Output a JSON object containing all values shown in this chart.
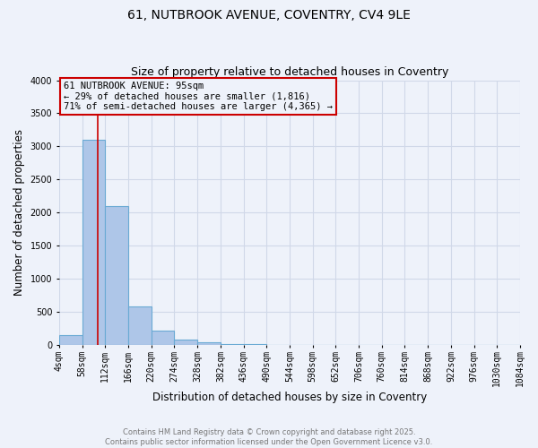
{
  "title": "61, NUTBROOK AVENUE, COVENTRY, CV4 9LE",
  "subtitle": "Size of property relative to detached houses in Coventry",
  "xlabel": "Distribution of detached houses by size in Coventry",
  "ylabel": "Number of detached properties",
  "bin_edges": [
    4,
    58,
    112,
    166,
    220,
    274,
    328,
    382,
    436,
    490,
    544,
    598,
    652,
    706,
    760,
    814,
    868,
    922,
    976,
    1030,
    1084
  ],
  "bar_heights": [
    150,
    3100,
    2100,
    575,
    220,
    75,
    35,
    15,
    5,
    2,
    1,
    0,
    0,
    0,
    0,
    0,
    0,
    0,
    0,
    0
  ],
  "bar_color": "#aec6e8",
  "bar_edge_color": "#6aaad4",
  "bar_edge_width": 0.8,
  "grid_color": "#d0d8e8",
  "background_color": "#eef2fa",
  "property_size": 95,
  "red_line_color": "#cc0000",
  "annotation_line1": "61 NUTBROOK AVENUE: 95sqm",
  "annotation_line2": "← 29% of detached houses are smaller (1,816)",
  "annotation_line3": "71% of semi-detached houses are larger (4,365) →",
  "annotation_box_color": "#cc0000",
  "ylim": [
    0,
    4000
  ],
  "yticks": [
    0,
    500,
    1000,
    1500,
    2000,
    2500,
    3000,
    3500,
    4000
  ],
  "xtick_labels": [
    "4sqm",
    "58sqm",
    "112sqm",
    "166sqm",
    "220sqm",
    "274sqm",
    "328sqm",
    "382sqm",
    "436sqm",
    "490sqm",
    "544sqm",
    "598sqm",
    "652sqm",
    "706sqm",
    "760sqm",
    "814sqm",
    "868sqm",
    "922sqm",
    "976sqm",
    "1030sqm",
    "1084sqm"
  ],
  "footer_line1": "Contains HM Land Registry data © Crown copyright and database right 2025.",
  "footer_line2": "Contains public sector information licensed under the Open Government Licence v3.0.",
  "title_fontsize": 10,
  "subtitle_fontsize": 9,
  "axis_label_fontsize": 8.5,
  "tick_fontsize": 7,
  "annotation_fontsize": 7.5,
  "footer_fontsize": 6
}
